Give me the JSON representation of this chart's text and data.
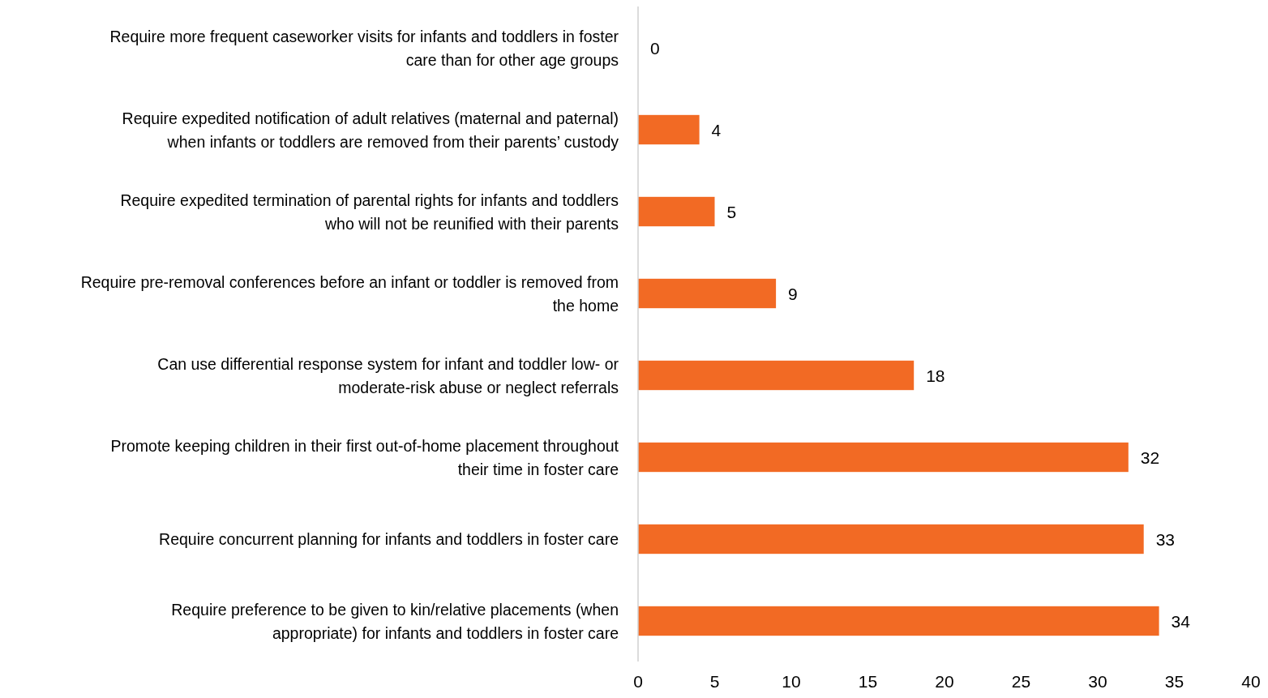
{
  "chart_data": {
    "type": "bar",
    "orientation": "horizontal",
    "categories": [
      "Require more frequent caseworker visits for infants and toddlers in foster care than for other age groups",
      "Require expedited notification of adult relatives (maternal and paternal) when infants or toddlers are removed from their parents’ custody",
      "Require expedited termination of parental rights for infants and toddlers who will not be reunified with their parents",
      "Require pre-removal conferences before an infant or toddler is removed from the home",
      "Can use differential response system for infant and toddler low- or moderate-risk abuse or neglect referrals",
      "Promote keeping children in their first out-of-home placement throughout their time in foster care",
      "Require concurrent planning for infants and toddlers in foster care",
      "Require preference to be given to kin/relative placements (when appropriate) for infants and toddlers in foster care"
    ],
    "values": [
      0,
      4,
      5,
      9,
      18,
      32,
      33,
      34
    ],
    "color": "#f26a24",
    "data_labels": true,
    "xlim": [
      0,
      40
    ],
    "xticks": [
      0,
      5,
      10,
      15,
      20,
      25,
      30,
      35,
      40
    ]
  }
}
